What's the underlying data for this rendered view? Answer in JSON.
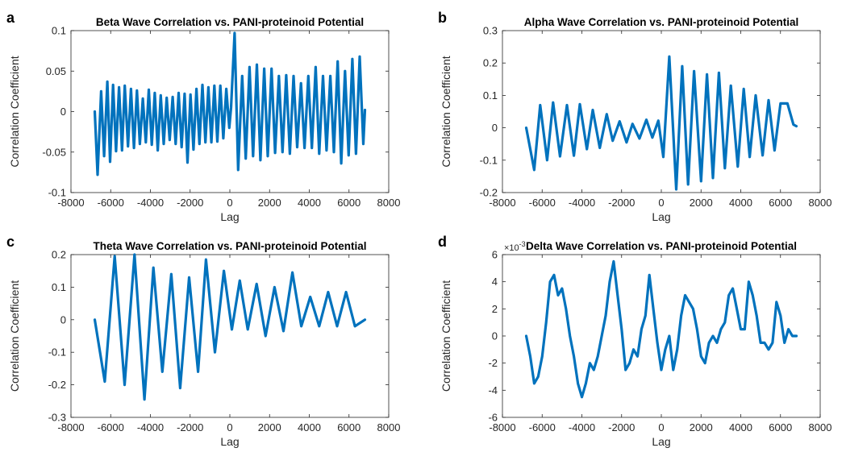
{
  "colors": {
    "line": "#0072BD",
    "axis": "#262626",
    "background": "#ffffff"
  },
  "chart_data": [
    {
      "panel_letter": "a",
      "type": "line",
      "title": "Beta Wave Correlation vs. PANI-proteinoid Potential",
      "xlabel": "Lag",
      "ylabel": "Correlation Coefficient",
      "xlim": [
        -8000,
        8000
      ],
      "ylim": [
        -0.1,
        0.1
      ],
      "xticks": [
        -8000,
        -6000,
        -4000,
        -2000,
        0,
        2000,
        4000,
        6000,
        8000
      ],
      "xtick_labels": [
        "-8000",
        "-6000",
        "-4000",
        "-2000",
        "0",
        "2000",
        "4000",
        "6000",
        "8000"
      ],
      "yticks": [
        -0.1,
        -0.05,
        0,
        0.05,
        0.1
      ],
      "ytick_labels": [
        "-0.1",
        "-0.05",
        "0",
        "0.05",
        "0.1"
      ],
      "exponent_label": "",
      "series": [
        {
          "x": [
            -6800,
            -6660,
            -6480,
            -6330,
            -6170,
            -6030,
            -5880,
            -5730,
            -5580,
            -5430,
            -5290,
            -5130,
            -4980,
            -4830,
            -4680,
            -4530,
            -4380,
            -4230,
            -4080,
            -3930,
            -3780,
            -3630,
            -3480,
            -3330,
            -3180,
            -3030,
            -2880,
            -2730,
            -2580,
            -2430,
            -2280,
            -2130,
            -1980,
            -1830,
            -1680,
            -1530,
            -1380,
            -1230,
            -1080,
            -930,
            -780,
            -630,
            -480,
            -330,
            -180,
            -30,
            60,
            240,
            420,
            620,
            800,
            990,
            1170,
            1360,
            1540,
            1730,
            1910,
            2100,
            2280,
            2470,
            2650,
            2840,
            3020,
            3210,
            3390,
            3580,
            3760,
            3950,
            4130,
            4320,
            4500,
            4690,
            4870,
            5060,
            5240,
            5430,
            5610,
            5800,
            5980,
            6170,
            6350,
            6540,
            6720,
            6800
          ],
          "y": [
            0,
            -0.078,
            0.025,
            -0.055,
            0.037,
            -0.062,
            0.033,
            -0.049,
            0.03,
            -0.048,
            0.032,
            -0.043,
            0.028,
            -0.045,
            0.026,
            -0.04,
            0.016,
            -0.038,
            0.027,
            -0.041,
            0.023,
            -0.048,
            0.02,
            -0.04,
            0.017,
            -0.035,
            0.018,
            -0.04,
            0.023,
            -0.044,
            0.022,
            -0.063,
            0.021,
            -0.047,
            0.028,
            -0.04,
            0.033,
            -0.038,
            0.03,
            -0.038,
            0.032,
            -0.037,
            0.032,
            -0.033,
            0.028,
            -0.02,
            0.005,
            0.097,
            -0.072,
            0.044,
            -0.058,
            0.055,
            -0.055,
            0.058,
            -0.06,
            0.053,
            -0.055,
            0.053,
            -0.051,
            0.044,
            -0.05,
            0.045,
            -0.052,
            0.044,
            -0.044,
            0.035,
            -0.045,
            0.044,
            -0.045,
            0.055,
            -0.052,
            0.044,
            -0.048,
            0.044,
            -0.05,
            0.062,
            -0.064,
            0.05,
            -0.054,
            0.065,
            -0.052,
            0.068,
            -0.04,
            0.002
          ]
        }
      ]
    },
    {
      "panel_letter": "b",
      "type": "line",
      "title": "Alpha Wave Correlation vs. PANI-proteinoid Potential",
      "xlabel": "Lag",
      "ylabel": "Correlation Coefficient",
      "xlim": [
        -8000,
        8000
      ],
      "ylim": [
        -0.2,
        0.3
      ],
      "xticks": [
        -8000,
        -6000,
        -4000,
        -2000,
        0,
        2000,
        4000,
        6000,
        8000
      ],
      "xtick_labels": [
        "-8000",
        "-6000",
        "-4000",
        "-2000",
        "0",
        "2000",
        "4000",
        "6000",
        "8000"
      ],
      "yticks": [
        -0.2,
        -0.1,
        0,
        0.1,
        0.2,
        0.3
      ],
      "ytick_labels": [
        "-0.2",
        "-0.1",
        "0",
        "0.1",
        "0.2",
        "0.3"
      ],
      "exponent_label": "",
      "series": [
        {
          "x": [
            -6800,
            -6400,
            -6100,
            -5750,
            -5450,
            -5100,
            -4750,
            -4400,
            -4100,
            -3750,
            -3450,
            -3100,
            -2750,
            -2450,
            -2100,
            -1750,
            -1450,
            -1100,
            -750,
            -450,
            -150,
            100,
            400,
            750,
            1050,
            1350,
            1650,
            2000,
            2300,
            2600,
            2900,
            3200,
            3500,
            3850,
            4150,
            4450,
            4750,
            5100,
            5400,
            5700,
            6000,
            6350,
            6650,
            6800
          ],
          "y": [
            0,
            -0.13,
            0.07,
            -0.1,
            0.078,
            -0.088,
            0.07,
            -0.086,
            0.073,
            -0.066,
            0.055,
            -0.062,
            0.042,
            -0.04,
            0.02,
            -0.045,
            0.012,
            -0.033,
            0.025,
            -0.03,
            0.022,
            -0.09,
            0.22,
            -0.19,
            0.19,
            -0.175,
            0.175,
            -0.165,
            0.165,
            -0.155,
            0.17,
            -0.125,
            0.13,
            -0.12,
            0.12,
            -0.09,
            0.1,
            -0.085,
            0.085,
            -0.07,
            0.075,
            0.075,
            0.01,
            0.005
          ]
        }
      ]
    },
    {
      "panel_letter": "c",
      "type": "line",
      "title": "Theta Wave Correlation vs. PANI-proteinoid Potential",
      "xlabel": "Lag",
      "ylabel": "Correlation Coefficient",
      "xlim": [
        -8000,
        8000
      ],
      "ylim": [
        -0.3,
        0.2
      ],
      "xticks": [
        -8000,
        -6000,
        -4000,
        -2000,
        0,
        2000,
        4000,
        6000,
        8000
      ],
      "xtick_labels": [
        "-8000",
        "-6000",
        "-4000",
        "-2000",
        "0",
        "2000",
        "4000",
        "6000",
        "8000"
      ],
      "yticks": [
        -0.3,
        -0.2,
        -0.1,
        0,
        0.1,
        0.2
      ],
      "ytick_labels": [
        "-0.3",
        "-0.2",
        "-0.1",
        "0",
        "0.1",
        "0.2"
      ],
      "exponent_label": "",
      "series": [
        {
          "x": [
            -6800,
            -6300,
            -5800,
            -5300,
            -4800,
            -4300,
            -3850,
            -3400,
            -2950,
            -2500,
            -2050,
            -1600,
            -1200,
            -750,
            -300,
            100,
            500,
            900,
            1350,
            1800,
            2250,
            2700,
            3150,
            3600,
            4050,
            4500,
            4950,
            5400,
            5850,
            6300,
            6800
          ],
          "y": [
            0,
            -0.19,
            0.195,
            -0.2,
            0.2,
            -0.245,
            0.16,
            -0.16,
            0.14,
            -0.21,
            0.13,
            -0.16,
            0.185,
            -0.1,
            0.15,
            -0.03,
            0.12,
            -0.03,
            0.11,
            -0.05,
            0.1,
            -0.035,
            0.145,
            -0.02,
            0.07,
            -0.02,
            0.085,
            -0.02,
            0.085,
            -0.02,
            0.0
          ]
        }
      ]
    },
    {
      "panel_letter": "d",
      "type": "line",
      "title": "Delta Wave Correlation vs. PANI-proteinoid Potential",
      "xlabel": "Lag",
      "ylabel": "Correlation Coefficient",
      "xlim": [
        -8000,
        8000
      ],
      "ylim": [
        -6,
        6
      ],
      "xticks": [
        -8000,
        -6000,
        -4000,
        -2000,
        0,
        2000,
        4000,
        6000,
        8000
      ],
      "xtick_labels": [
        "-8000",
        "-6000",
        "-4000",
        "-2000",
        "0",
        "2000",
        "4000",
        "6000",
        "8000"
      ],
      "yticks": [
        -6,
        -4,
        -2,
        0,
        2,
        4,
        6
      ],
      "ytick_labels": [
        "-6",
        "-4",
        "-2",
        "0",
        "2",
        "4",
        "6"
      ],
      "exponent_label": "×10",
      "exponent_power": "-3",
      "series": [
        {
          "x": [
            -6800,
            -6600,
            -6400,
            -6200,
            -6000,
            -5800,
            -5600,
            -5400,
            -5200,
            -5000,
            -4800,
            -4600,
            -4400,
            -4200,
            -4000,
            -3800,
            -3600,
            -3400,
            -3200,
            -3000,
            -2800,
            -2600,
            -2400,
            -2200,
            -2000,
            -1800,
            -1600,
            -1400,
            -1200,
            -1000,
            -800,
            -600,
            -400,
            -200,
            0,
            200,
            400,
            600,
            800,
            1000,
            1200,
            1400,
            1600,
            1800,
            2000,
            2200,
            2400,
            2600,
            2800,
            3000,
            3200,
            3400,
            3600,
            3800,
            4000,
            4200,
            4400,
            4600,
            4800,
            5000,
            5200,
            5400,
            5600,
            5800,
            6000,
            6200,
            6400,
            6600,
            6800
          ],
          "y": [
            0,
            -1.5,
            -3.5,
            -3,
            -1.5,
            1,
            4,
            4.5,
            3,
            3.5,
            2,
            0,
            -1.5,
            -3.5,
            -4.5,
            -3.5,
            -2,
            -2.5,
            -1.5,
            0,
            1.5,
            4,
            5.5,
            3,
            0.5,
            -2.5,
            -2,
            -1,
            -1.5,
            0.5,
            1.5,
            4.5,
            2,
            -0.5,
            -2.5,
            -1,
            0,
            -2.5,
            -1,
            1.5,
            3,
            2.5,
            2,
            0.5,
            -1.5,
            -2,
            -0.5,
            0,
            -0.5,
            0.5,
            1,
            3,
            3.5,
            2,
            0.5,
            0.5,
            4,
            3,
            1.5,
            -0.5,
            -0.5,
            -1,
            -0.5,
            2.5,
            1.5,
            -0.5,
            0.5,
            0,
            0
          ]
        }
      ]
    }
  ]
}
